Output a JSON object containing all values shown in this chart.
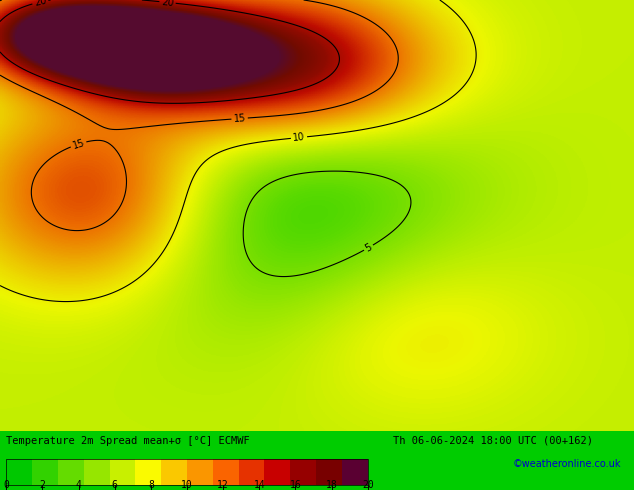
{
  "title_line1": "Temperature 2m Spread mean+σ [°C] ECMWF",
  "title_line2": "Th 06-06-2024 18:00 UTC (00+162)",
  "watermark": "©weatheronline.co.uk",
  "colorbar_ticks": [
    0,
    2,
    4,
    6,
    8,
    10,
    12,
    14,
    16,
    18,
    20
  ],
  "colorbar_colors": [
    "#00c800",
    "#32d200",
    "#64dc00",
    "#96e600",
    "#c8f000",
    "#fafa00",
    "#fac800",
    "#fa9600",
    "#fa6400",
    "#e63200",
    "#c80000",
    "#960000",
    "#780000",
    "#5a0032"
  ],
  "bg_color": "#00cc00",
  "map_bg": "#00cc00",
  "figsize": [
    6.34,
    4.9
  ],
  "dpi": 100
}
